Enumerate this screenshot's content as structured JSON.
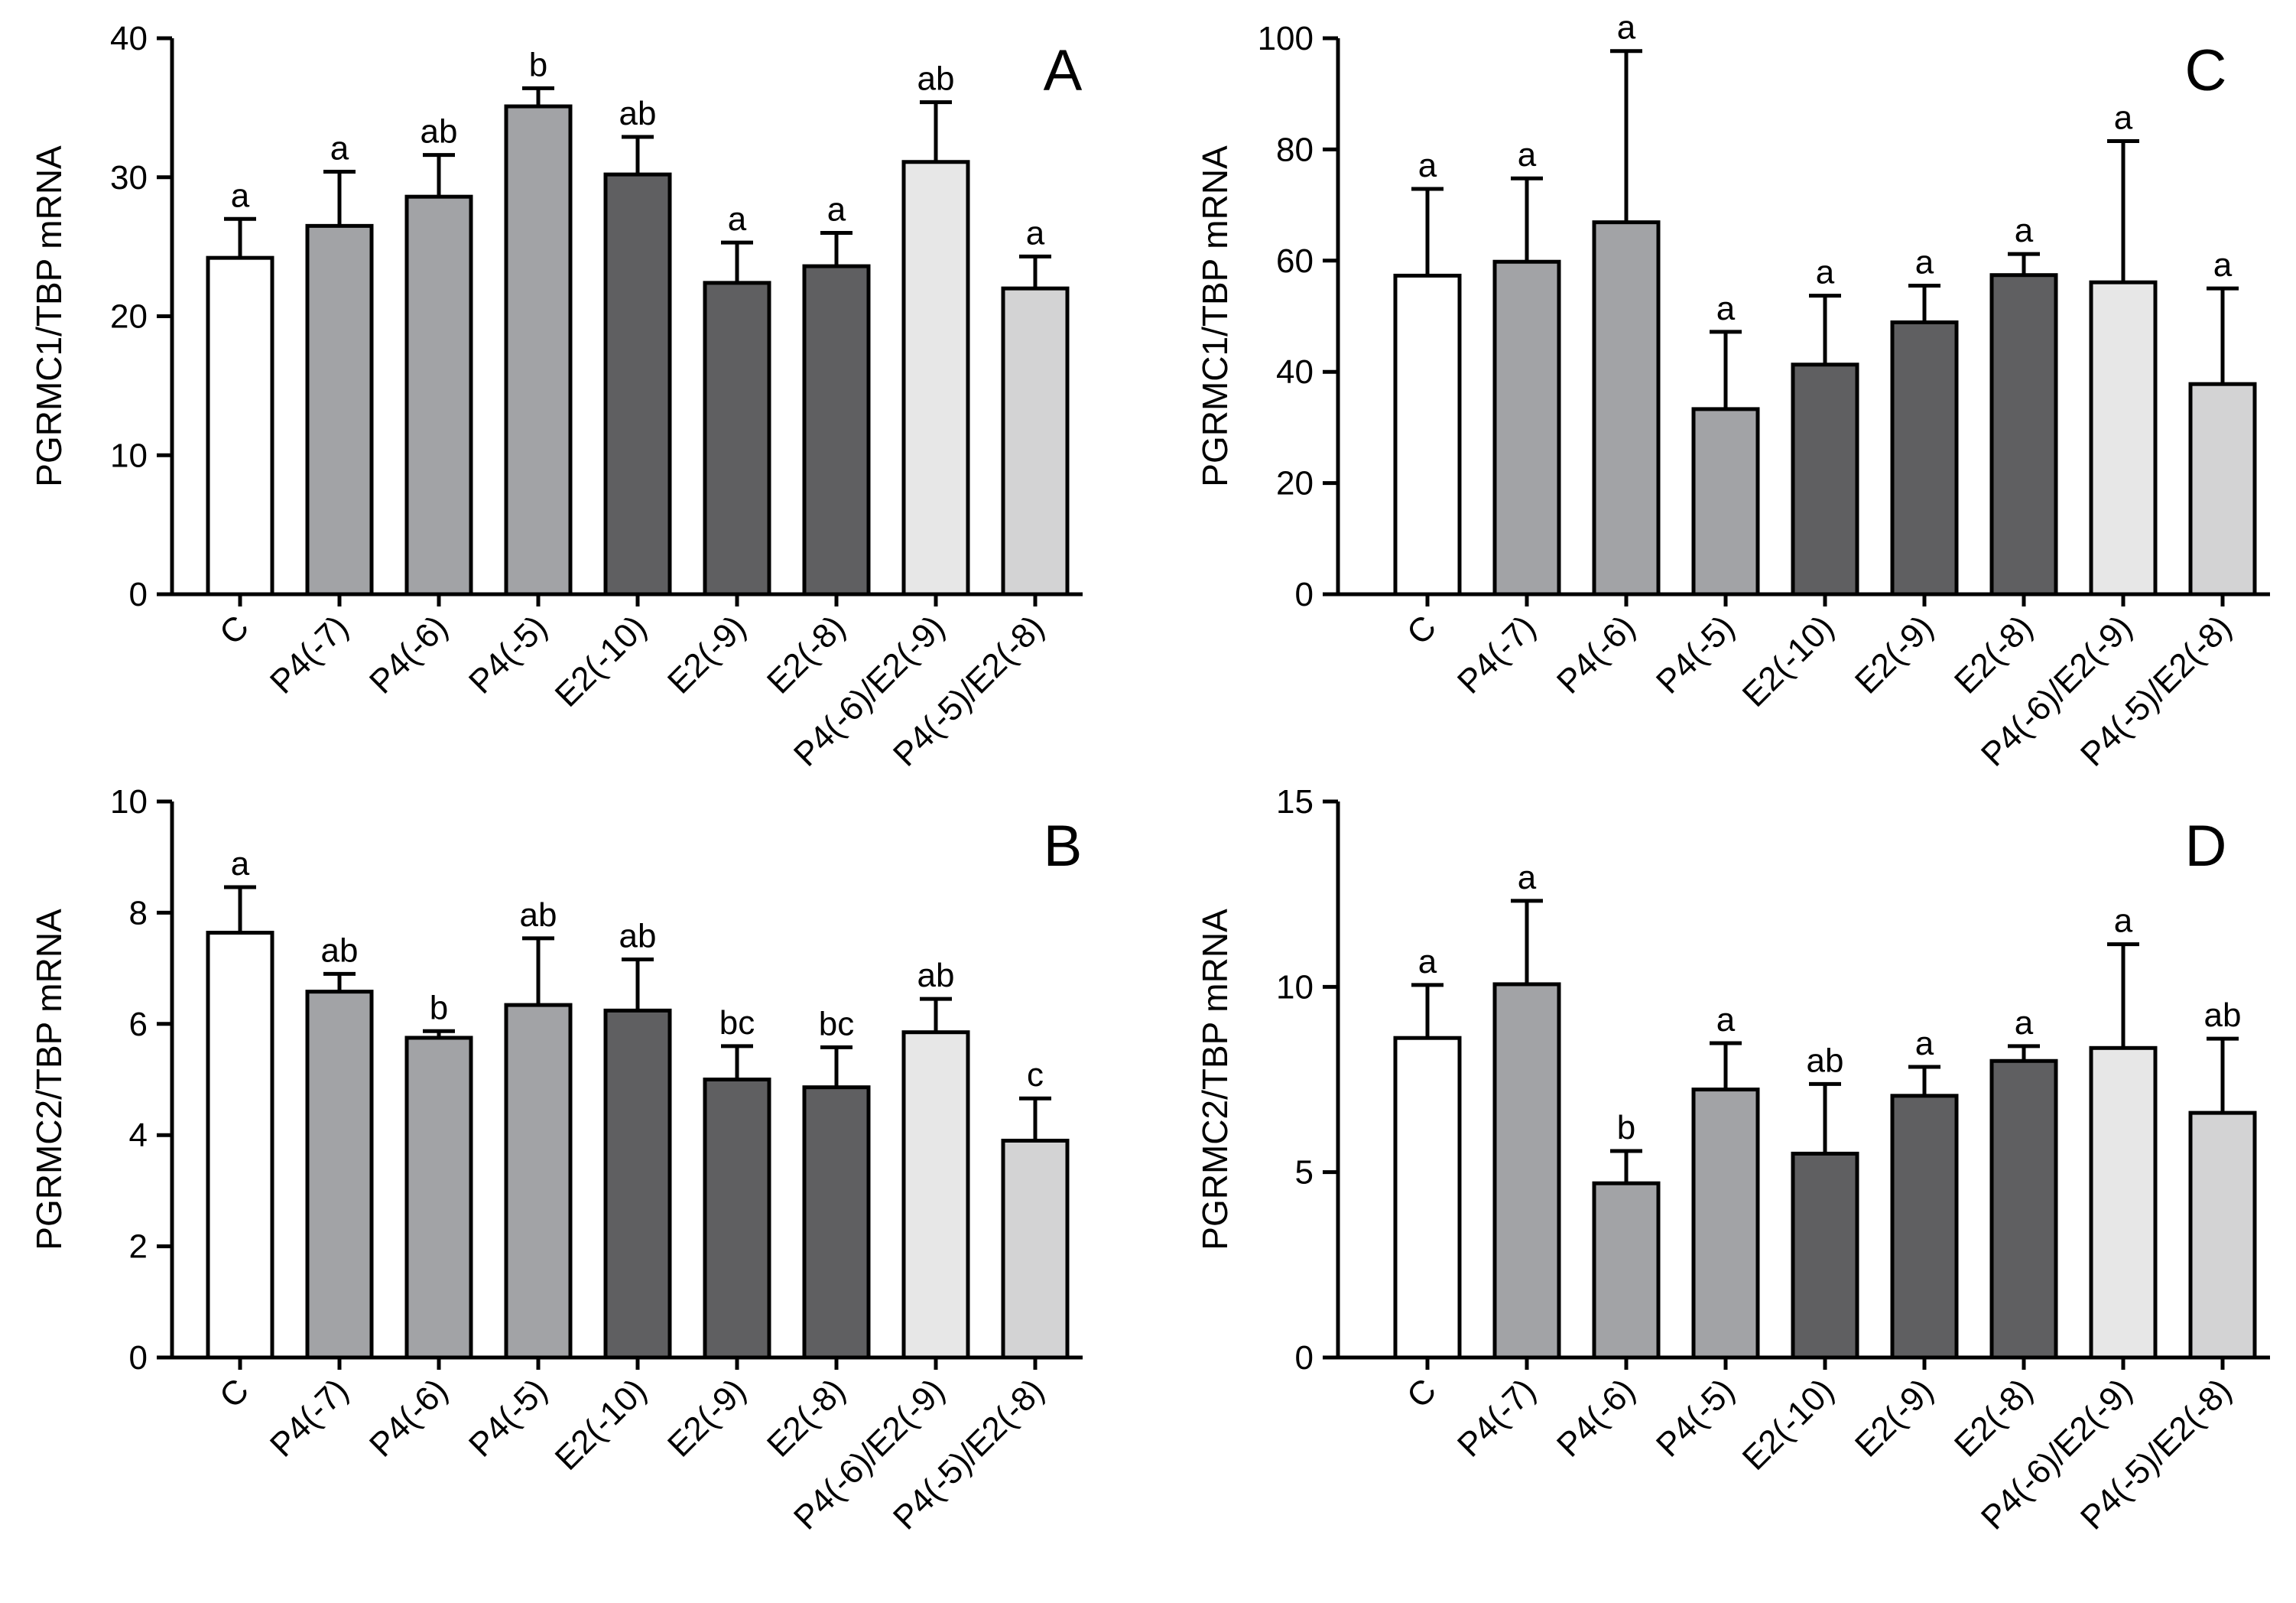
{
  "chart_data": [
    {
      "type": "bar",
      "panel_label": "A",
      "ylabel": "PGRMC1/TBP mRNA",
      "categories": [
        "C",
        "P4(-7)",
        "P4(-6)",
        "P4(-5)",
        "E2(-10)",
        "E2(-9)",
        "E2(-8)",
        "P4(-6)/E2(-9)",
        "P4(-5)/E2(-8)"
      ],
      "values": [
        24.2,
        26.5,
        28.6,
        35.1,
        30.2,
        22.4,
        23.6,
        31.1,
        22.0
      ],
      "errors": [
        2.8,
        3.9,
        3.0,
        1.3,
        2.7,
        2.9,
        2.4,
        4.3,
        2.3
      ],
      "letters": [
        "a",
        "a",
        "ab",
        "b",
        "ab",
        "a",
        "a",
        "ab",
        "a"
      ],
      "colors": [
        "#ffffff",
        "#a2a3a6",
        "#a2a3a6",
        "#a2a3a6",
        "#5f5f61",
        "#5f5f61",
        "#5f5f61",
        "#e7e7e7",
        "#d3d3d4"
      ],
      "ylim": [
        0,
        40
      ],
      "yticks": [
        0,
        10,
        20,
        30,
        40
      ]
    },
    {
      "type": "bar",
      "panel_label": "C",
      "ylabel": "PGRMC1/TBP mRNA",
      "categories": [
        "C",
        "P4(-7)",
        "P4(-6)",
        "P4(-5)",
        "E2(-10)",
        "E2(-9)",
        "E2(-8)",
        "P4(-6)/E2(-9)",
        "P4(-5)/E2(-8)"
      ],
      "values": [
        57.3,
        59.8,
        66.9,
        33.3,
        41.3,
        48.9,
        57.4,
        56.1,
        37.8
      ],
      "errors": [
        15.6,
        15.0,
        30.8,
        13.9,
        12.4,
        6.6,
        3.8,
        25.4,
        17.2
      ],
      "letters": [
        "a",
        "a",
        "a",
        "a",
        "a",
        "a",
        "a",
        "a",
        "a"
      ],
      "colors": [
        "#ffffff",
        "#a2a3a6",
        "#a2a3a6",
        "#a2a3a6",
        "#5f5f61",
        "#5f5f61",
        "#5f5f61",
        "#e7e7e7",
        "#d3d3d4"
      ],
      "ylim": [
        0,
        100
      ],
      "yticks": [
        0,
        20,
        40,
        60,
        80,
        100
      ]
    },
    {
      "type": "bar",
      "panel_label": "B",
      "ylabel": "PGRMC2/TBP mRNA",
      "categories": [
        "C",
        "P4(-7)",
        "P4(-6)",
        "P4(-5)",
        "E2(-10)",
        "E2(-9)",
        "E2(-8)",
        "P4(-6)/E2(-9)",
        "P4(-5)/E2(-8)"
      ],
      "values": [
        7.64,
        6.58,
        5.75,
        6.34,
        6.24,
        5.0,
        4.86,
        5.85,
        3.9
      ],
      "errors": [
        0.82,
        0.32,
        0.12,
        1.2,
        0.92,
        0.6,
        0.72,
        0.6,
        0.76
      ],
      "letters": [
        "a",
        "ab",
        "b",
        "ab",
        "ab",
        "bc",
        "bc",
        "ab",
        "c"
      ],
      "colors": [
        "#ffffff",
        "#a2a3a6",
        "#a2a3a6",
        "#a2a3a6",
        "#5f5f61",
        "#5f5f61",
        "#5f5f61",
        "#e7e7e7",
        "#d3d3d4"
      ],
      "ylim": [
        0,
        10
      ],
      "yticks": [
        0,
        2,
        4,
        6,
        8,
        10
      ]
    },
    {
      "type": "bar",
      "panel_label": "D",
      "ylabel": "PGRMC2/TBP mRNA",
      "categories": [
        "C",
        "P4(-7)",
        "P4(-6)",
        "P4(-5)",
        "E2(-10)",
        "E2(-9)",
        "E2(-8)",
        "P4(-6)/E2(-9)",
        "P4(-5)/E2(-8)"
      ],
      "values": [
        8.62,
        10.07,
        4.7,
        7.23,
        5.5,
        7.06,
        8.0,
        8.35,
        6.6
      ],
      "errors": [
        1.43,
        2.25,
        0.87,
        1.25,
        1.88,
        0.78,
        0.4,
        2.8,
        2.0
      ],
      "letters": [
        "a",
        "a",
        "b",
        "a",
        "ab",
        "a",
        "a",
        "a",
        "ab"
      ],
      "colors": [
        "#ffffff",
        "#a2a3a6",
        "#a2a3a6",
        "#a2a3a6",
        "#5f5f61",
        "#5f5f61",
        "#5f5f61",
        "#e7e7e7",
        "#d3d3d4"
      ],
      "ylim": [
        0,
        15
      ],
      "yticks": [
        0,
        5,
        10,
        15
      ]
    }
  ]
}
